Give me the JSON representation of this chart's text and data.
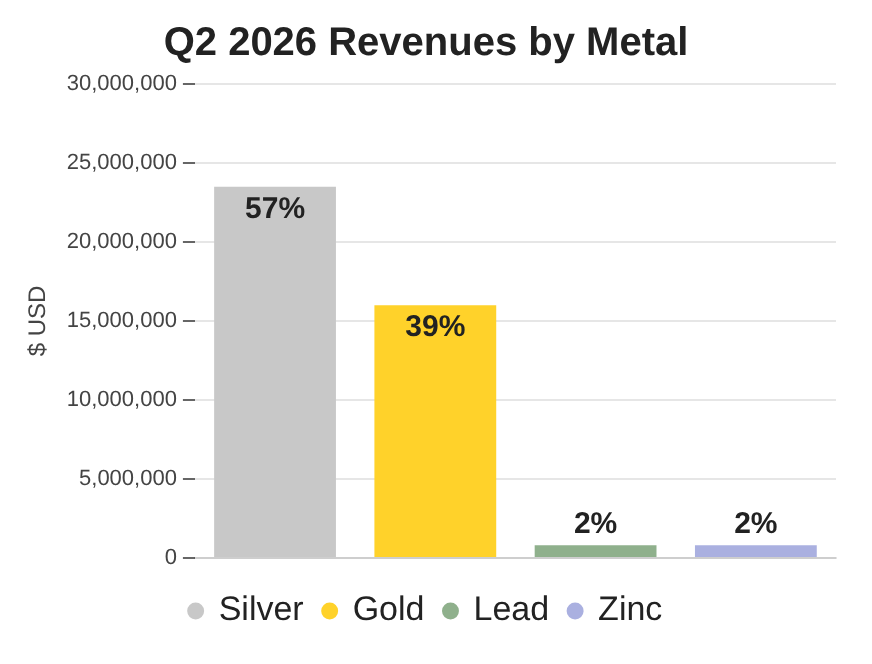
{
  "chart_data": {
    "type": "bar",
    "title": "Q2 2026 Revenues by Metal",
    "ylabel": "$ USD",
    "categories": [
      null,
      null,
      null,
      null
    ],
    "series": [
      {
        "name": "Silver",
        "color": "#c8c8c8",
        "values": [
          23500000,
          null,
          null,
          null
        ]
      },
      {
        "name": "Gold",
        "color": "#ffd22a",
        "values": [
          null,
          16000000,
          null,
          null
        ]
      },
      {
        "name": "Lead",
        "color": "#8fb08c",
        "values": [
          null,
          null,
          800000,
          null
        ]
      },
      {
        "name": "Zinc",
        "color": "#aab0e0",
        "values": [
          null,
          null,
          null,
          800000
        ]
      }
    ],
    "annotations": [
      {
        "text": "57%",
        "y": 23500000
      },
      {
        "text": "39%",
        "y": 16000000
      },
      {
        "text": "2%",
        "y": 800000
      },
      {
        "text": "2%",
        "y": 800000
      }
    ],
    "ylim": [
      0,
      30000000
    ],
    "yticks": [
      {
        "value": 0,
        "label": "0"
      },
      {
        "value": 5000000,
        "label": "5,000,000"
      },
      {
        "value": 10000000,
        "label": "10,000,000"
      },
      {
        "value": 15000000,
        "label": "15,000,000"
      },
      {
        "value": 20000000,
        "label": "20,000,000"
      },
      {
        "value": 25000000,
        "label": "25,000,000"
      },
      {
        "value": 30000000,
        "label": "30,000,000"
      }
    ],
    "grid": "y",
    "legend": "bottom"
  }
}
